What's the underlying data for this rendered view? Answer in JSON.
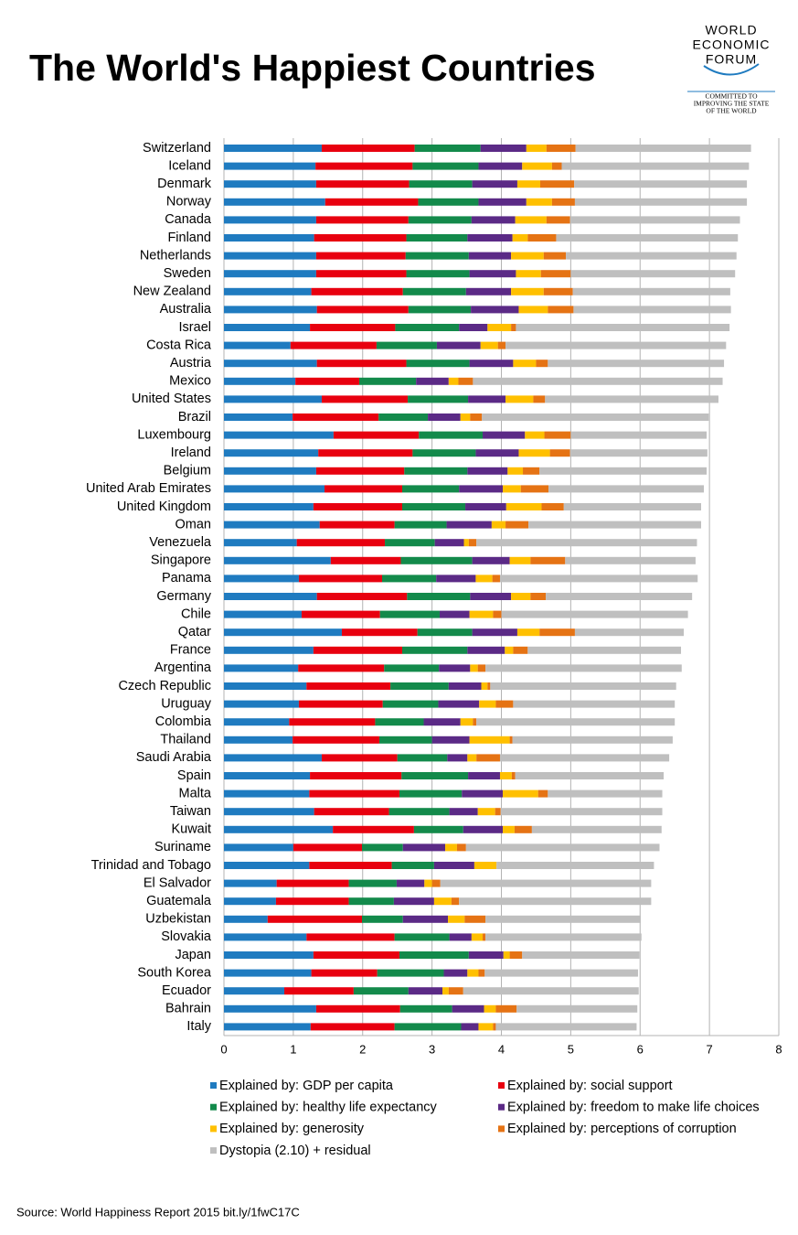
{
  "chart_data": {
    "type": "stacked-bar-horizontal",
    "title": "The World's Happiest Countries",
    "source": "Source:  World Happiness Report 2015 bit.ly/1fwC17C",
    "categories": [
      "Switzerland",
      "Iceland",
      "Denmark",
      "Norway",
      "Canada",
      "Finland",
      "Netherlands",
      "Sweden",
      "New Zealand",
      "Australia",
      "Israel",
      "Costa Rica",
      "Austria",
      "Mexico",
      "United States",
      "Brazil",
      "Luxembourg",
      "Ireland",
      "Belgium",
      "United Arab Emirates",
      "United Kingdom",
      "Oman",
      "Venezuela",
      "Singapore",
      "Panama",
      "Germany",
      "Chile",
      "Qatar",
      "France",
      "Argentina",
      "Czech Republic",
      "Uruguay",
      "Colombia",
      "Thailand",
      "Saudi Arabia",
      "Spain",
      "Malta",
      "Taiwan",
      "Kuwait",
      "Suriname",
      "Trinidad and Tobago",
      "El Salvador",
      "Guatemala",
      "Uzbekistan",
      "Slovakia",
      "Japan",
      "South Korea",
      "Ecuador",
      "Bahrain",
      "Italy"
    ],
    "series": [
      {
        "name": "Explained by: GDP per capita",
        "color": "#1f7bc0",
        "values": [
          1.41,
          1.32,
          1.33,
          1.46,
          1.33,
          1.3,
          1.33,
          1.33,
          1.26,
          1.34,
          1.24,
          0.96,
          1.34,
          1.03,
          1.41,
          0.99,
          1.58,
          1.36,
          1.33,
          1.45,
          1.29,
          1.38,
          1.05,
          1.54,
          1.08,
          1.34,
          1.12,
          1.7,
          1.29,
          1.07,
          1.19,
          1.08,
          0.94,
          0.99,
          1.41,
          1.24,
          1.23,
          1.3,
          1.57,
          1.0,
          1.23,
          0.76,
          0.75,
          0.63,
          1.19,
          1.29,
          1.26,
          0.87,
          1.33,
          1.25
        ]
      },
      {
        "name": "Explained by: social support",
        "color": "#e8000f",
        "values": [
          1.34,
          1.4,
          1.34,
          1.34,
          1.33,
          1.33,
          1.29,
          1.3,
          1.32,
          1.32,
          1.23,
          1.24,
          1.29,
          0.92,
          1.24,
          1.24,
          1.23,
          1.36,
          1.27,
          1.12,
          1.28,
          1.08,
          1.27,
          1.01,
          1.2,
          1.3,
          1.13,
          1.09,
          1.28,
          1.24,
          1.21,
          1.21,
          1.24,
          1.25,
          1.09,
          1.32,
          1.3,
          1.08,
          1.17,
          0.99,
          1.19,
          1.04,
          1.05,
          1.36,
          1.27,
          1.24,
          0.95,
          1.0,
          1.21,
          1.21
        ]
      },
      {
        "name": "Explained by: healthy life expectancy",
        "color": "#138a4b",
        "values": [
          0.95,
          0.95,
          0.91,
          0.87,
          0.91,
          0.88,
          0.91,
          0.91,
          0.91,
          0.9,
          0.92,
          0.87,
          0.91,
          0.82,
          0.87,
          0.71,
          0.92,
          0.91,
          0.91,
          0.82,
          0.91,
          0.75,
          0.72,
          1.03,
          0.78,
          0.91,
          0.86,
          0.79,
          0.94,
          0.79,
          0.84,
          0.8,
          0.7,
          0.76,
          0.72,
          0.96,
          0.9,
          0.87,
          0.71,
          0.59,
          0.61,
          0.69,
          0.65,
          0.59,
          0.79,
          1.0,
          0.96,
          0.79,
          0.75,
          0.96
        ]
      },
      {
        "name": "Explained by: freedom to make life choices",
        "color": "#5b2a86",
        "values": [
          0.66,
          0.63,
          0.65,
          0.69,
          0.63,
          0.65,
          0.61,
          0.67,
          0.65,
          0.69,
          0.41,
          0.63,
          0.63,
          0.47,
          0.54,
          0.47,
          0.61,
          0.62,
          0.58,
          0.63,
          0.59,
          0.65,
          0.42,
          0.54,
          0.57,
          0.59,
          0.43,
          0.65,
          0.54,
          0.45,
          0.47,
          0.59,
          0.53,
          0.54,
          0.29,
          0.46,
          0.59,
          0.41,
          0.57,
          0.61,
          0.58,
          0.4,
          0.58,
          0.65,
          0.32,
          0.5,
          0.34,
          0.49,
          0.46,
          0.25
        ]
      },
      {
        "name": "Explained by: generosity",
        "color": "#ffc000",
        "values": [
          0.29,
          0.43,
          0.33,
          0.37,
          0.45,
          0.22,
          0.47,
          0.36,
          0.47,
          0.42,
          0.34,
          0.25,
          0.33,
          0.14,
          0.4,
          0.14,
          0.28,
          0.45,
          0.22,
          0.26,
          0.51,
          0.2,
          0.07,
          0.3,
          0.24,
          0.28,
          0.34,
          0.32,
          0.12,
          0.11,
          0.09,
          0.24,
          0.18,
          0.58,
          0.13,
          0.17,
          0.51,
          0.25,
          0.17,
          0.17,
          0.32,
          0.11,
          0.25,
          0.24,
          0.16,
          0.09,
          0.16,
          0.09,
          0.17,
          0.21
        ]
      },
      {
        "name": "Explained by: perceptions of corruption",
        "color": "#e57314",
        "values": [
          0.42,
          0.14,
          0.49,
          0.33,
          0.34,
          0.41,
          0.32,
          0.43,
          0.42,
          0.37,
          0.07,
          0.11,
          0.17,
          0.21,
          0.17,
          0.17,
          0.38,
          0.29,
          0.24,
          0.4,
          0.32,
          0.33,
          0.11,
          0.5,
          0.11,
          0.22,
          0.12,
          0.51,
          0.21,
          0.11,
          0.04,
          0.25,
          0.05,
          0.04,
          0.34,
          0.05,
          0.14,
          0.08,
          0.25,
          0.13,
          0,
          0.12,
          0.11,
          0.3,
          0.04,
          0.18,
          0.09,
          0.21,
          0.3,
          0.04
        ]
      },
      {
        "name": "Dystopia (2.10) + residual",
        "color": "#bfbfbf",
        "values": [
          2.53,
          2.7,
          2.49,
          2.48,
          2.45,
          2.62,
          2.46,
          2.37,
          2.27,
          2.27,
          3.08,
          3.18,
          2.54,
          3.6,
          2.5,
          3.27,
          1.96,
          1.98,
          2.41,
          2.24,
          1.98,
          2.49,
          3.18,
          1.88,
          2.85,
          2.11,
          2.69,
          1.57,
          2.21,
          2.83,
          2.68,
          2.33,
          2.86,
          2.31,
          2.44,
          2.14,
          1.65,
          2.33,
          1.87,
          2.79,
          2.27,
          3.04,
          2.77,
          2.24,
          2.25,
          1.69,
          2.21,
          2.53,
          1.74,
          2.03
        ]
      }
    ],
    "xlim": [
      0,
      8
    ],
    "xticks": [
      0,
      1,
      2,
      3,
      4,
      5,
      6,
      7,
      8
    ],
    "grid": true
  },
  "logo": {
    "name_lines": [
      "WORLD",
      "ECONOMIC",
      "FORUM"
    ],
    "tagline_lines": [
      "COMMITTED TO",
      "IMPROVING THE STATE",
      "OF THE WORLD"
    ]
  }
}
